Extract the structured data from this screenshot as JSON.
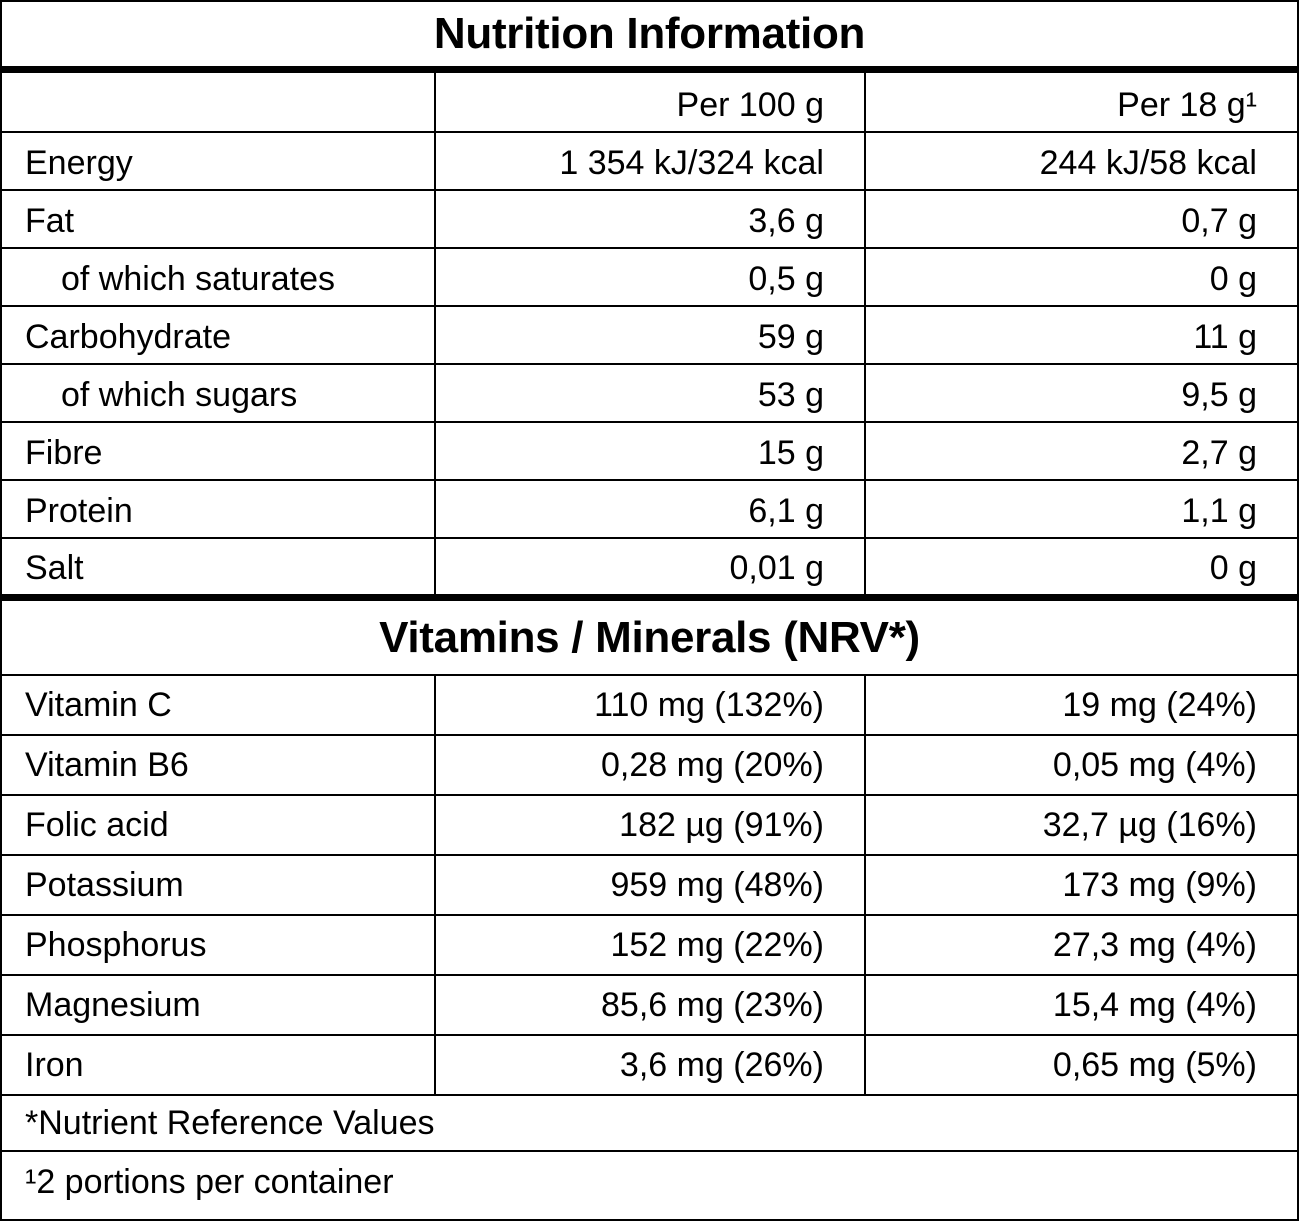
{
  "title": "Nutrition Information",
  "columns": {
    "col1": "",
    "col2": "Per 100 g",
    "col3": "Per 18 g¹"
  },
  "nutrients": [
    {
      "name": "Energy",
      "per100": "1 354 kJ/324 kcal",
      "perPortion": "244 kJ/58 kcal"
    },
    {
      "name": "Fat",
      "per100": "3,6 g",
      "perPortion": "0,7 g"
    },
    {
      "name": "of which saturates",
      "per100": "0,5 g",
      "perPortion": "0 g"
    },
    {
      "name": "Carbohydrate",
      "per100": "59 g",
      "perPortion": "11 g"
    },
    {
      "name": "of which sugars",
      "per100": "53 g",
      "perPortion": "9,5 g"
    },
    {
      "name": "Fibre",
      "per100": "15 g",
      "perPortion": "2,7 g"
    },
    {
      "name": "Protein",
      "per100": "6,1 g",
      "perPortion": "1,1 g"
    },
    {
      "name": "Salt",
      "per100": "0,01 g",
      "perPortion": "0 g"
    }
  ],
  "vitamins_title": "Vitamins / Minerals (NRV*)",
  "vitamins": [
    {
      "name": "Vitamin C",
      "per100": "110 mg (132%)",
      "perPortion": "19 mg (24%)"
    },
    {
      "name": "Vitamin B6",
      "per100": "0,28 mg (20%)",
      "perPortion": "0,05 mg (4%)"
    },
    {
      "name": "Folic acid",
      "per100": "182 µg (91%)",
      "perPortion": "32,7 µg (16%)"
    },
    {
      "name": "Potassium",
      "per100": "959 mg (48%)",
      "perPortion": "173 mg (9%)"
    },
    {
      "name": "Phosphorus",
      "per100": "152 mg (22%)",
      "perPortion": "27,3 mg (4%)"
    },
    {
      "name": "Magnesium",
      "per100": "85,6 mg (23%)",
      "perPortion": "15,4 mg (4%)"
    },
    {
      "name": "Iron",
      "per100": "3,6 mg (26%)",
      "perPortion": "0,65 mg (5%)"
    }
  ],
  "footnotes": {
    "nrv": "*Nutrient Reference Values",
    "portions": "¹2 portions per container"
  }
}
